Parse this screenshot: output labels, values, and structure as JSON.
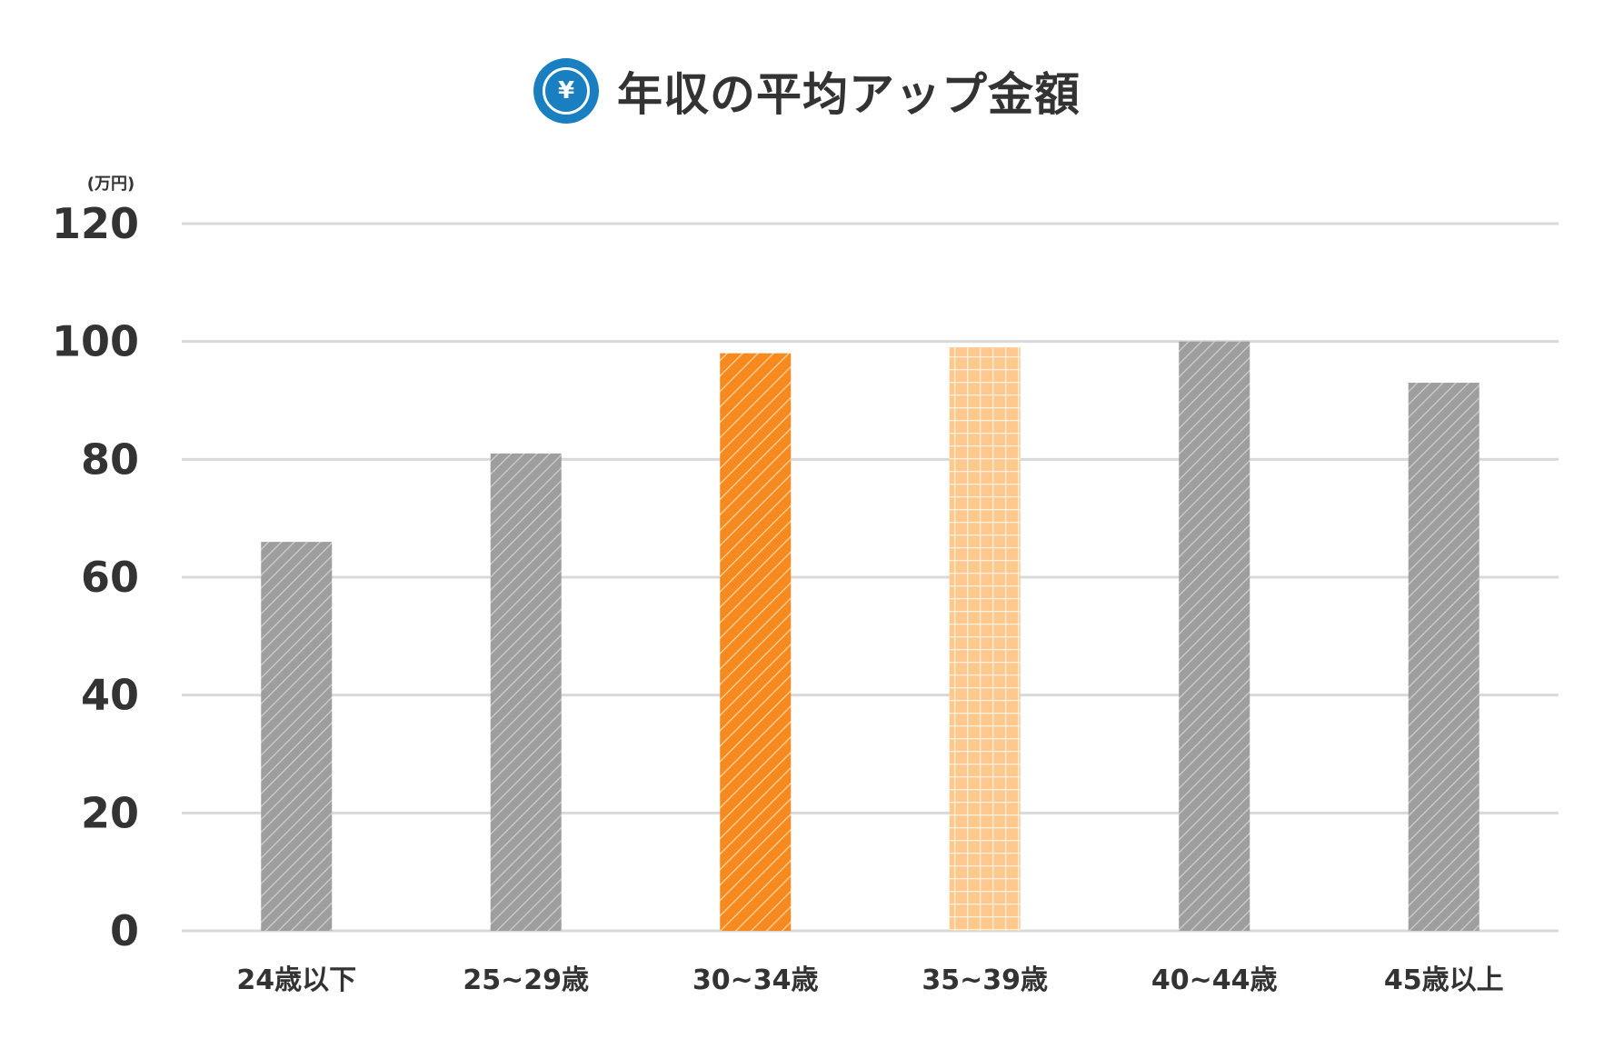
{
  "header": {
    "icon": "yen-coin-icon",
    "icon_glyph": "¥",
    "title": "年収の平均アップ金額"
  },
  "colors": {
    "gray": "#9e9e9e",
    "orange": "#f68a1e",
    "light_orange": "#ffc88c",
    "grid": "#d9d9d9",
    "icon_blue": "#1a7fc1"
  },
  "chart_data": {
    "type": "bar",
    "title": "年収の平均アップ金額",
    "unit": "(万円)",
    "ylim": [
      0,
      120
    ],
    "yticks": [
      0,
      20,
      40,
      60,
      80,
      100,
      120
    ],
    "grid": true,
    "categories": [
      "24歳以下",
      "25~29歳",
      "30~34歳",
      "35~39歳",
      "40~44歳",
      "45歳以上"
    ],
    "values": [
      66,
      81,
      98,
      99,
      100,
      93
    ],
    "styles": [
      "gray-hatch",
      "gray-hatch",
      "orange-hatch",
      "light-orange-grid",
      "gray-hatch",
      "gray-hatch"
    ]
  }
}
